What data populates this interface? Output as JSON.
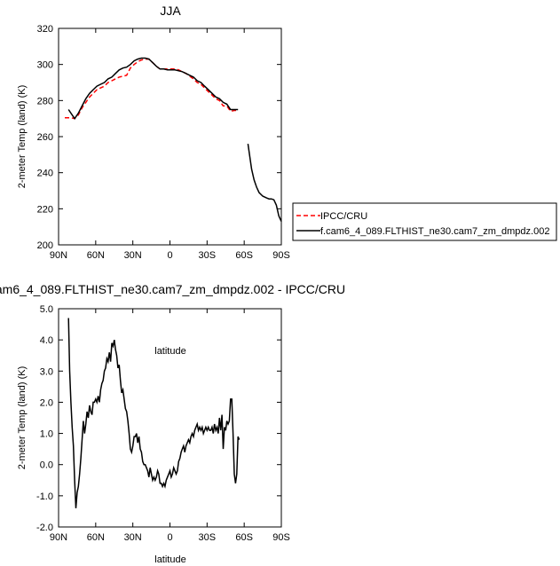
{
  "chart_data": [
    {
      "type": "line",
      "title": "JJA",
      "xlabel": "latitude",
      "ylabel": "2-meter Temp (land) (K)",
      "xlim": [
        90,
        -90
      ],
      "ylim": [
        200,
        320
      ],
      "xticks": [
        90,
        60,
        30,
        0,
        -30,
        -60,
        -90
      ],
      "xtick_labels": [
        "90N",
        "60N",
        "30N",
        "0",
        "30S",
        "60S",
        "90S"
      ],
      "yticks": [
        200,
        220,
        240,
        260,
        280,
        300,
        320
      ],
      "ytick_labels": [
        "200",
        "220",
        "240",
        "260",
        "280",
        "300",
        "320"
      ],
      "legend": {
        "placement": "right",
        "entries": [
          "IPCC/CRU",
          "f.cam6_4_089.FLTHIST_ne30.cam7_zm_dmpdz.002"
        ]
      },
      "series": [
        {
          "name": "IPCC/CRU",
          "color": "#ff0000",
          "dash": true,
          "x": [
            85,
            80,
            77,
            74,
            71,
            68,
            65,
            62,
            59,
            56,
            53,
            50,
            47,
            44,
            41,
            38,
            35,
            32,
            29,
            26,
            23,
            20,
            17,
            14,
            11,
            8,
            5,
            2,
            -1,
            -4,
            -7,
            -10,
            -13,
            -16,
            -19,
            -22,
            -25,
            -28,
            -31,
            -34,
            -37,
            -40,
            -43,
            -46,
            -49,
            -52,
            -55
          ],
          "values": [
            270.5,
            270.5,
            270,
            272,
            276,
            279,
            282,
            284,
            286,
            287,
            288,
            290,
            291,
            292,
            293,
            293.5,
            294,
            298,
            300,
            301.5,
            302.5,
            303,
            303,
            301,
            299,
            297.5,
            297.5,
            297.5,
            297.5,
            297.5,
            297,
            296,
            295,
            293.5,
            292,
            290,
            289,
            287,
            285,
            283,
            281,
            280,
            277,
            277,
            274,
            274.5,
            274.5
          ]
        },
        {
          "name": "f.cam6_4_089.FLTHIST_ne30.cam7_zm_dmpdz.002",
          "color": "#000000",
          "dash": false,
          "x": [
            82,
            79,
            77,
            74,
            71,
            68,
            65,
            62,
            59,
            56,
            53,
            50,
            47,
            44,
            41,
            38,
            35,
            32,
            29,
            26,
            23,
            20,
            17,
            14,
            11,
            8,
            5,
            2,
            -1,
            -4,
            -7,
            -10,
            -13,
            -16,
            -19,
            -22,
            -25,
            -28,
            -31,
            -34,
            -37,
            -40,
            -43,
            -46,
            -49,
            -52,
            -55,
            null,
            -63,
            -66,
            -68,
            -70,
            -72,
            -75,
            -78,
            -80,
            -82,
            -84,
            -86,
            -88,
            -90
          ],
          "values": [
            275,
            272,
            270,
            273,
            277,
            281,
            284,
            286,
            288,
            289,
            290,
            292,
            293,
            295,
            297,
            298,
            298.5,
            300,
            302,
            303,
            303.5,
            303.5,
            303,
            301,
            299,
            297.5,
            297.5,
            297,
            297,
            297,
            296.5,
            296,
            295,
            294,
            293,
            291,
            290,
            288,
            286,
            284,
            282,
            281,
            279,
            278,
            275,
            275,
            275,
            null,
            256,
            242,
            236,
            232,
            229,
            227,
            226,
            225.5,
            225.5,
            225,
            222,
            216,
            213
          ]
        }
      ]
    },
    {
      "type": "line",
      "title": "am6_4_089.FLTHIST_ne30.cam7_zm_dmpdz.002 - IPCC/CRU",
      "xlabel": "latitude",
      "ylabel": "2-meter Temp (land) (K)",
      "xlim": [
        90,
        -90
      ],
      "ylim": [
        -2,
        5
      ],
      "xticks": [
        90,
        60,
        30,
        0,
        -30,
        -60,
        -90
      ],
      "xtick_labels": [
        "90N",
        "60N",
        "30N",
        "0",
        "30S",
        "60S",
        "90S"
      ],
      "yticks": [
        -2,
        -1,
        0,
        1,
        2,
        3,
        4,
        5
      ],
      "ytick_labels": [
        "-2.0",
        "-1.0",
        "0.0",
        "1.0",
        "2.0",
        "3.0",
        "4.0",
        "5.0"
      ],
      "series": [
        {
          "color": "#000000",
          "x": [
            82,
            81,
            80,
            79,
            78,
            77,
            76,
            75,
            74,
            73,
            72,
            71,
            70,
            69,
            68,
            67,
            66,
            65,
            64,
            63,
            62,
            61,
            60,
            59,
            58,
            57,
            56,
            55,
            54,
            53,
            52,
            51,
            50,
            49,
            48,
            47,
            46,
            45,
            44,
            43,
            42,
            41,
            40,
            39,
            38,
            37,
            36,
            35,
            34,
            33,
            32,
            31,
            30,
            29,
            28,
            27,
            26,
            25,
            24,
            23,
            22,
            21,
            20,
            19,
            18,
            17,
            16,
            15,
            14,
            13,
            12,
            11,
            10,
            9,
            8,
            7,
            6,
            5,
            4,
            3,
            2,
            1,
            0,
            -1,
            -2,
            -3,
            -4,
            -5,
            -6,
            -7,
            -8,
            -9,
            -10,
            -11,
            -12,
            -13,
            -14,
            -15,
            -16,
            -17,
            -18,
            -19,
            -20,
            -21,
            -22,
            -23,
            -24,
            -25,
            -26,
            -27,
            -28,
            -29,
            -30,
            -31,
            -32,
            -33,
            -34,
            -35,
            -36,
            -37,
            -38,
            -39,
            -40,
            -41,
            -42,
            -43,
            -44,
            -45,
            -46,
            -47,
            -48,
            -49,
            -50,
            -51,
            -52,
            -53,
            -54,
            -55,
            -56
          ],
          "values": [
            4.7,
            3.0,
            2.0,
            1.2,
            0.6,
            -0.5,
            -1.4,
            -0.9,
            -0.7,
            -0.3,
            0.2,
            0.8,
            1.4,
            1.0,
            1.3,
            1.7,
            1.5,
            1.9,
            1.7,
            1.6,
            2.0,
            2.0,
            2.1,
            2.0,
            2.2,
            2.0,
            2.4,
            2.6,
            2.7,
            3.0,
            3.1,
            3.4,
            3.3,
            3.6,
            3.3,
            3.9,
            3.8,
            4.0,
            3.7,
            3.5,
            3.1,
            3.2,
            2.7,
            2.3,
            2.4,
            2.1,
            1.8,
            1.7,
            1.4,
            1.0,
            0.5,
            0.4,
            0.6,
            0.9,
            0.9,
            1.0,
            0.7,
            0.9,
            0.5,
            0.4,
            0.1,
            0.0,
            0.0,
            -0.1,
            -0.2,
            -0.4,
            -0.1,
            -0.3,
            -0.5,
            -0.4,
            -0.5,
            -0.4,
            -0.2,
            -0.3,
            -0.6,
            -0.6,
            -0.7,
            -0.6,
            -0.7,
            -0.5,
            -0.4,
            -0.3,
            -0.2,
            -0.4,
            -0.3,
            -0.1,
            -0.2,
            -0.3,
            -0.2,
            0.1,
            0.2,
            0.4,
            0.5,
            0.6,
            0.4,
            0.6,
            0.7,
            0.8,
            0.7,
            0.9,
            1.0,
            0.9,
            1.1,
            1.2,
            1.3,
            1.1,
            1.2,
            1.1,
            1.2,
            1.0,
            1.1,
            1.2,
            1.1,
            1.2,
            1.1,
            1.1,
            1.2,
            1.0,
            1.3,
            1.1,
            1.2,
            1.0,
            1.5,
            1.1,
            1.6,
            0.5,
            1.2,
            1.1,
            1.4,
            1.3,
            1.4,
            2.1,
            2.1,
            1.0,
            -0.3,
            -0.6,
            -0.3,
            0.9,
            0.8
          ]
        }
      ]
    }
  ]
}
